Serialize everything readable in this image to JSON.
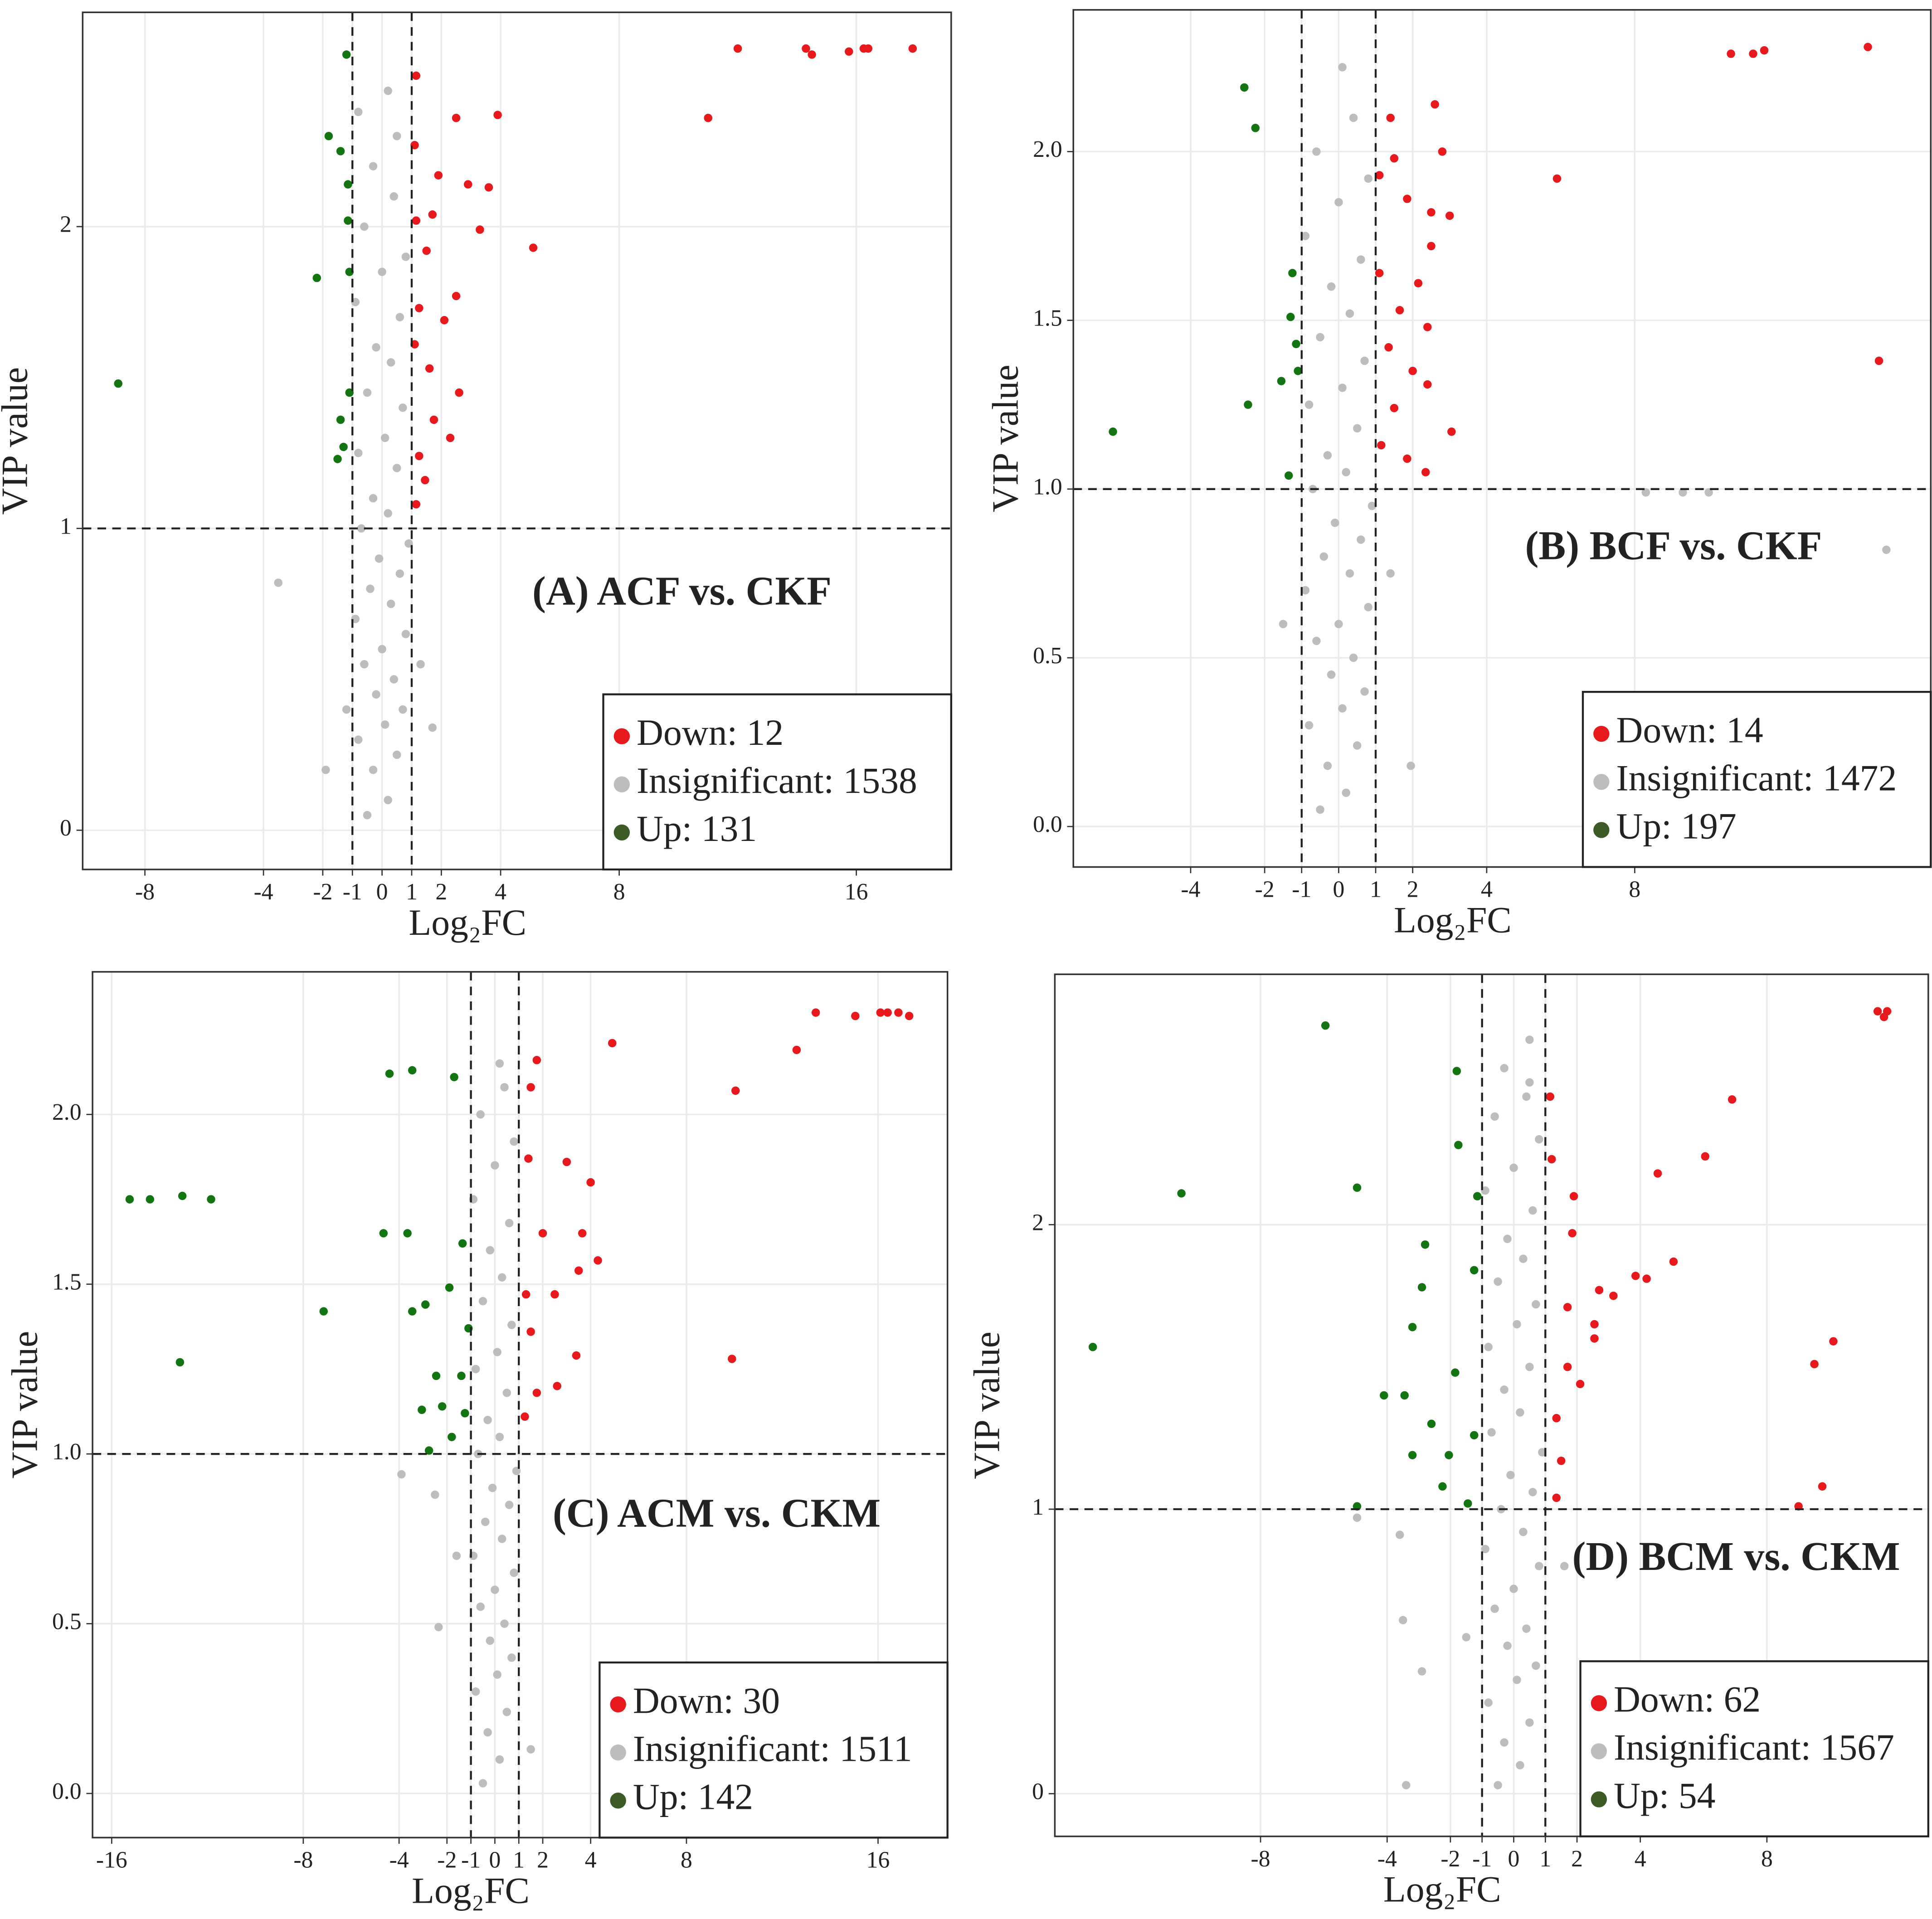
{
  "chart_data": [
    {
      "type": "scatter",
      "title": "(A) ACF vs. CKF",
      "x_label": "Log₂FC",
      "y_label": "VIP value",
      "xlim": [
        -10.1,
        19.2
      ],
      "ylim": [
        -0.13,
        2.71
      ],
      "xticks": [
        -8,
        -4,
        -2,
        -1,
        0,
        1,
        2,
        4,
        8,
        16
      ],
      "yticks": [
        0,
        1,
        2
      ],
      "vlines": [
        -1,
        1
      ],
      "hline": 1,
      "grid": true,
      "legend": "bottom right",
      "series": [
        {
          "name": "Down: 12",
          "color": "#e8191c",
          "x": [
            12.0,
            14.3,
            14.5,
            15.75,
            16.25,
            16.4,
            17.9,
            11.0,
            3.9,
            1.15,
            2.5,
            5.1,
            3.6,
            2.9,
            1.9,
            3.3,
            1.7,
            1.5,
            2.5,
            1.25,
            2.1,
            1.6,
            2.6,
            1.75,
            2.3,
            1.25,
            1.45,
            1.15,
            1.1,
            1.15,
            1.1
          ],
          "values": [
            2.59,
            2.59,
            2.57,
            2.58,
            2.59,
            2.59,
            2.59,
            2.36,
            2.37,
            2.5,
            2.36,
            1.93,
            2.13,
            2.14,
            2.17,
            1.99,
            2.04,
            1.92,
            1.77,
            1.73,
            1.69,
            1.53,
            1.45,
            1.36,
            1.3,
            1.24,
            1.16,
            1.08,
            2.27,
            2.02,
            1.61
          ]
        },
        {
          "name": "Insignificant: 1538",
          "color": "#bdbdbd",
          "x": [
            -3.5,
            -1.9,
            1.7,
            -0.5,
            0.2,
            -0.3,
            0.5,
            -0.8,
            0.1,
            0.7,
            -0.2,
            0.4,
            -0.6,
            0.0,
            0.8,
            -0.9,
            0.3,
            -0.4,
            0.6,
            -0.1,
            0.9,
            -0.7,
            0.2,
            -0.3,
            0.5,
            -0.8,
            0.1,
            0.7,
            -0.5,
            0.3,
            -0.2,
            0.6,
            -0.9,
            0.0,
            0.8,
            -0.6,
            0.4,
            -0.3,
            0.5,
            0.2,
            -0.8,
            1.3,
            -1.2
          ],
          "values": [
            0.82,
            0.2,
            0.34,
            0.05,
            0.1,
            0.2,
            0.25,
            0.3,
            0.35,
            0.4,
            0.45,
            0.5,
            0.55,
            0.6,
            0.65,
            0.7,
            0.75,
            0.8,
            0.85,
            0.9,
            0.95,
            1.0,
            1.05,
            1.1,
            1.2,
            1.25,
            1.3,
            1.4,
            1.45,
            1.55,
            1.6,
            1.7,
            1.75,
            1.85,
            1.9,
            2.0,
            2.1,
            2.2,
            2.3,
            2.45,
            2.38,
            0.55,
            0.4
          ]
        },
        {
          "name": "Up: 131",
          "color": "#127512",
          "x": [
            -8.9,
            -1.2,
            -1.8,
            -1.4,
            -1.15,
            -1.15,
            -1.1,
            -2.2,
            -1.4,
            -1.3,
            -1.5,
            -1.1
          ],
          "values": [
            1.48,
            2.57,
            2.3,
            2.25,
            2.14,
            2.02,
            1.85,
            1.83,
            1.36,
            1.27,
            1.23,
            1.45
          ]
        }
      ]
    },
    {
      "type": "scatter",
      "title": "(B) BCF vs. CKF",
      "x_label": "Log₂FC",
      "y_label": "VIP value",
      "xlim": [
        -7.17,
        16.0
      ],
      "ylim": [
        -0.12,
        2.42
      ],
      "xticks": [
        -4,
        -2,
        -1,
        0,
        1,
        2,
        4,
        8
      ],
      "yticks": [
        {
          "value": 0,
          "label": "0.0"
        },
        0.5,
        {
          "value": 1,
          "label": "1.0"
        },
        1.5,
        {
          "value": 2,
          "label": "2.0"
        }
      ],
      "vlines": [
        -1,
        1
      ],
      "hline": 1,
      "grid": true,
      "legend": "bottom right",
      "series": [
        {
          "name": "Down: 14",
          "color": "#e8191c",
          "x": [
            10.6,
            11.2,
            11.5,
            14.3,
            14.6,
            5.9,
            2.6,
            2.8,
            3.0,
            2.5,
            1.4,
            1.5,
            1.85,
            2.5,
            2.15,
            1.65,
            2.4,
            1.35,
            2.0,
            2.4,
            1.5,
            3.05,
            1.15,
            2.35,
            1.85,
            1.1,
            1.1
          ],
          "values": [
            2.29,
            2.29,
            2.3,
            2.31,
            1.38,
            1.92,
            2.14,
            2.0,
            1.81,
            1.82,
            2.1,
            1.98,
            1.86,
            1.72,
            1.61,
            1.53,
            1.48,
            1.42,
            1.35,
            1.31,
            1.24,
            1.17,
            1.13,
            1.05,
            1.09,
            1.93,
            1.64
          ]
        },
        {
          "name": "Insignificant: 1472",
          "color": "#bdbdbd",
          "x": [
            14.8,
            1.95,
            8.3,
            9.3,
            10.0,
            -0.5,
            0.2,
            -0.3,
            0.5,
            -0.8,
            0.1,
            0.7,
            -0.2,
            0.4,
            -0.6,
            0.0,
            0.8,
            -0.9,
            0.3,
            -0.4,
            0.6,
            -0.1,
            0.9,
            -0.7,
            0.2,
            -0.3,
            0.5,
            -0.8,
            0.1,
            0.7,
            -0.5,
            0.3,
            -0.2,
            0.6,
            -0.9,
            0.0,
            0.8,
            -0.6,
            0.4,
            0.1,
            -1.5,
            1.4
          ],
          "values": [
            0.82,
            0.18,
            0.99,
            0.99,
            0.99,
            0.05,
            0.1,
            0.18,
            0.24,
            0.3,
            0.35,
            0.4,
            0.45,
            0.5,
            0.55,
            0.6,
            0.65,
            0.7,
            0.75,
            0.8,
            0.85,
            0.9,
            0.95,
            1.0,
            1.05,
            1.1,
            1.18,
            1.25,
            1.3,
            1.38,
            1.45,
            1.52,
            1.6,
            1.68,
            1.75,
            1.85,
            1.92,
            2.0,
            2.1,
            2.25,
            0.6,
            0.75
          ]
        },
        {
          "name": "Up: 197",
          "color": "#127512",
          "x": [
            -6.1,
            -2.55,
            -2.25,
            -2.45,
            -1.55,
            -1.25,
            -1.3,
            -1.15,
            -1.35,
            -1.1
          ],
          "values": [
            1.17,
            2.19,
            2.07,
            1.25,
            1.32,
            1.64,
            1.51,
            1.43,
            1.04,
            1.35
          ]
        }
      ]
    },
    {
      "type": "scatter",
      "title": "(C) ACM vs. CKM",
      "x_label": "Log₂FC",
      "y_label": "VIP value",
      "xlim": [
        -16.8,
        18.9
      ],
      "ylim": [
        -0.13,
        2.42
      ],
      "xticks": [
        -16,
        -8,
        -4,
        -2,
        -1,
        0,
        1,
        2,
        4,
        8,
        16
      ],
      "yticks": [
        {
          "value": 0,
          "label": "0.0"
        },
        0.5,
        {
          "value": 1,
          "label": "1.0"
        },
        1.5,
        {
          "value": 2,
          "label": "2.0"
        }
      ],
      "vlines": [
        -1,
        1
      ],
      "hline": 1,
      "grid": true,
      "legend": "bottom right",
      "series": [
        {
          "name": "Down: 30",
          "color": "#e8191c",
          "x": [
            13.4,
            15.05,
            16.1,
            16.4,
            16.85,
            17.3,
            12.6,
            4.9,
            10.05,
            9.9,
            1.75,
            1.5,
            3.0,
            4.0,
            3.65,
            4.3,
            3.5,
            2.5,
            3.4,
            2.6,
            1.75,
            2.0,
            1.4,
            1.5,
            1.25,
            1.3
          ],
          "values": [
            2.3,
            2.29,
            2.3,
            2.3,
            2.3,
            2.29,
            2.19,
            2.21,
            2.07,
            1.28,
            2.16,
            2.08,
            1.86,
            1.8,
            1.65,
            1.57,
            1.54,
            1.47,
            1.29,
            1.2,
            1.18,
            1.65,
            1.87,
            1.36,
            1.11,
            1.47
          ]
        },
        {
          "name": "Insignificant: 1511",
          "color": "#bdbdbd",
          "x": [
            -3.9,
            -2.35,
            1.5,
            -0.5,
            0.2,
            -0.3,
            0.5,
            -0.8,
            0.1,
            0.7,
            -0.2,
            0.4,
            -0.6,
            0.0,
            0.8,
            -0.9,
            0.3,
            -0.4,
            0.6,
            -0.1,
            0.9,
            -0.7,
            0.2,
            -0.3,
            0.5,
            -0.8,
            0.1,
            0.7,
            -0.5,
            0.3,
            -0.2,
            0.6,
            -0.9,
            0.0,
            0.8,
            -0.6,
            0.4,
            0.2,
            -2.5,
            -1.6
          ],
          "values": [
            0.94,
            0.49,
            0.13,
            0.03,
            0.1,
            0.18,
            0.24,
            0.3,
            0.35,
            0.4,
            0.45,
            0.5,
            0.55,
            0.6,
            0.65,
            0.7,
            0.75,
            0.8,
            0.85,
            0.9,
            0.95,
            1.0,
            1.05,
            1.1,
            1.18,
            1.25,
            1.3,
            1.38,
            1.45,
            1.52,
            1.6,
            1.68,
            1.75,
            1.85,
            1.92,
            2.0,
            2.08,
            2.15,
            0.88,
            0.7
          ]
        },
        {
          "name": "Up: 142",
          "color": "#127512",
          "x": [
            -15.25,
            -14.4,
            -13.05,
            -11.85,
            -13.15,
            -7.15,
            -4.4,
            -3.45,
            -1.7,
            -4.65,
            -3.65,
            -3.45,
            -2.9,
            -1.9,
            -1.35,
            -1.1,
            -2.45,
            -1.4,
            -3.05,
            -2.2,
            -1.25,
            -1.8,
            -2.75
          ],
          "values": [
            1.75,
            1.75,
            1.76,
            1.75,
            1.27,
            1.42,
            2.12,
            2.13,
            2.11,
            1.65,
            1.65,
            1.42,
            1.44,
            1.49,
            1.62,
            1.37,
            1.23,
            1.23,
            1.13,
            1.14,
            1.12,
            1.05,
            1.01
          ]
        }
      ]
    },
    {
      "type": "scatter",
      "title": "(D) BCM vs. CKM",
      "x_label": "Log₂FC",
      "y_label": "VIP value",
      "xlim": [
        -14.5,
        13.1
      ],
      "ylim": [
        -0.15,
        2.88
      ],
      "xticks": [
        -8,
        -4,
        -2,
        -1,
        0,
        1,
        2,
        4,
        8
      ],
      "yticks": [
        0,
        1,
        2
      ],
      "vlines": [
        -1,
        1
      ],
      "hline": 1,
      "grid": true,
      "legend": "bottom right",
      "series": [
        {
          "name": "Down: 62",
          "color": "#e8191c",
          "x": [
            11.5,
            11.7,
            11.8,
            6.9,
            6.05,
            4.55,
            5.05,
            4.2,
            3.85,
            3.15,
            2.7,
            2.55,
            2.55,
            10.1,
            9.5,
            9.75,
            9.0,
            1.9,
            1.85,
            1.7,
            2.1,
            1.7,
            1.15,
            1.2,
            1.35,
            1.5,
            1.35
          ],
          "values": [
            2.75,
            2.73,
            2.75,
            2.44,
            2.24,
            2.18,
            1.87,
            1.81,
            1.82,
            1.75,
            1.77,
            1.65,
            1.6,
            1.59,
            1.51,
            1.08,
            1.01,
            2.1,
            1.97,
            1.71,
            1.44,
            1.5,
            2.45,
            2.23,
            1.32,
            1.17,
            1.04
          ]
        },
        {
          "name": "Insignificant: 1567",
          "color": "#bdbdbd",
          "x": [
            -4.95,
            -3.6,
            -3.5,
            -3.4,
            -2.9,
            0.5,
            -0.5,
            0.2,
            -0.3,
            0.5,
            -0.8,
            0.1,
            0.7,
            -0.2,
            0.4,
            -0.6,
            0.0,
            0.8,
            -0.9,
            0.3,
            -0.4,
            0.6,
            -0.1,
            0.9,
            -0.7,
            0.2,
            -0.3,
            0.5,
            -0.8,
            0.1,
            0.7,
            -0.5,
            0.3,
            -0.2,
            0.6,
            -0.9,
            0.0,
            0.8,
            -0.6,
            0.4,
            -0.3,
            0.5,
            1.6,
            -1.5
          ],
          "values": [
            0.97,
            0.91,
            0.61,
            0.03,
            0.43,
            2.65,
            0.03,
            0.1,
            0.18,
            0.25,
            0.32,
            0.4,
            0.45,
            0.52,
            0.58,
            0.65,
            0.72,
            0.8,
            0.86,
            0.92,
            1.0,
            1.06,
            1.12,
            1.2,
            1.27,
            1.34,
            1.42,
            1.5,
            1.57,
            1.65,
            1.72,
            1.8,
            1.88,
            1.95,
            2.05,
            2.12,
            2.2,
            2.3,
            2.38,
            2.45,
            2.55,
            2.5,
            0.8,
            0.55
          ]
        },
        {
          "name": "Up: 54",
          "color": "#127512",
          "x": [
            -13.3,
            -10.5,
            -5.95,
            -4.95,
            -1.8,
            -2.8,
            -2.9,
            -3.2,
            -1.75,
            -1.15,
            -1.25,
            -1.85,
            -4.1,
            -3.45,
            -2.6,
            -2.05,
            -3.2,
            -2.25,
            -4.95,
            -1.25,
            -1.45
          ],
          "values": [
            1.57,
            2.11,
            2.7,
            2.13,
            2.54,
            1.93,
            1.78,
            1.64,
            2.28,
            2.1,
            1.84,
            1.48,
            1.4,
            1.4,
            1.3,
            1.19,
            1.19,
            1.08,
            1.01,
            1.26,
            1.02
          ]
        }
      ]
    }
  ]
}
